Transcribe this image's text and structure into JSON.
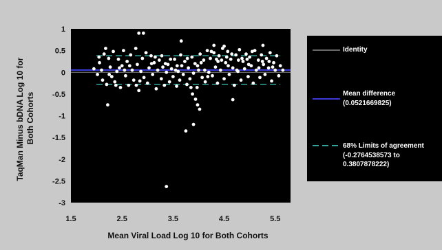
{
  "chart_data": {
    "type": "scatter",
    "title": "",
    "xlabel": "Mean Viral Load Log 10 for Both Cohorts",
    "ylabel_lines": [
      "TaqMan Minus bDNA Log 10 for",
      "Both Cohorts"
    ],
    "xlim": [
      1.5,
      5.8
    ],
    "ylim": [
      -3,
      1
    ],
    "x_ticks": [
      1.5,
      2.5,
      3.5,
      4.5,
      5.5
    ],
    "x_tick_labels": [
      "1.5",
      "2.5",
      "3.5",
      "4.5",
      "5.5"
    ],
    "y_ticks": [
      1,
      0.5,
      0,
      -0.5,
      -1,
      -1.5,
      -2,
      -2.5,
      -3
    ],
    "y_tick_labels": [
      "1",
      "0.5",
      "0",
      "-0.5",
      "-1",
      "-1.5",
      "-2",
      "-2.5",
      "-3"
    ],
    "grid": false,
    "legend_position": "right",
    "reference_lines": [
      {
        "name": "Identity",
        "y": 0,
        "color": "#8a8a8a",
        "style": "solid"
      },
      {
        "name": "Mean difference",
        "value_label": "(0.0521669825)",
        "y": 0.0521669825,
        "color": "#3a3ad8",
        "style": "solid"
      },
      {
        "name": "68% Limits of agreement",
        "value_label": "(-0.2764538573 to 0.3807878222)",
        "y": [
          -0.2764538573,
          0.3807878222
        ],
        "color": "#2fa89a",
        "style": "dashed"
      }
    ],
    "series": [
      {
        "point_color": "#ffffff",
        "points": [
          [
            2.83,
            0.9
          ],
          [
            2.92,
            0.9
          ],
          [
            3.66,
            0.72
          ],
          [
            2.22,
            -0.75
          ],
          [
            3.37,
            -2.63
          ],
          [
            3.75,
            -1.35
          ],
          [
            3.9,
            -1.2
          ],
          [
            3.94,
            -0.62
          ],
          [
            3.98,
            -0.75
          ],
          [
            4.02,
            -0.85
          ],
          [
            3.88,
            -0.5
          ],
          [
            4.67,
            -0.63
          ],
          [
            4.3,
            0.62
          ],
          [
            4.5,
            0.6
          ],
          [
            5.26,
            0.62
          ],
          [
            1.95,
            0.08
          ],
          [
            2.02,
            -0.05
          ],
          [
            2.06,
            0.22
          ],
          [
            2.1,
            0.05
          ],
          [
            2.12,
            -0.18
          ],
          [
            2.15,
            0.42
          ],
          [
            2.18,
            0.55
          ],
          [
            2.2,
            -0.28
          ],
          [
            2.24,
            0.32
          ],
          [
            2.27,
            0.12
          ],
          [
            2.3,
            -0.1
          ],
          [
            2.33,
            0.48
          ],
          [
            2.36,
            -0.22
          ],
          [
            2.4,
            0.02
          ],
          [
            2.43,
            0.3
          ],
          [
            2.47,
            -0.35
          ],
          [
            2.5,
            0.15
          ],
          [
            2.53,
            0.5
          ],
          [
            2.57,
            -0.08
          ],
          [
            2.6,
            0.25
          ],
          [
            2.63,
            -0.3
          ],
          [
            2.67,
            0.4
          ],
          [
            2.7,
            0.05
          ],
          [
            2.73,
            -0.18
          ],
          [
            2.77,
            0.55
          ],
          [
            2.8,
            0.18
          ],
          [
            2.83,
            -0.42
          ],
          [
            2.87,
            0.02
          ],
          [
            2.9,
            0.32
          ],
          [
            2.93,
            -0.12
          ],
          [
            2.97,
            0.45
          ],
          [
            3.0,
            -0.25
          ],
          [
            3.03,
            0.1
          ],
          [
            3.07,
            0.38
          ],
          [
            3.1,
            -0.05
          ],
          [
            3.13,
            0.22
          ],
          [
            3.17,
            -0.38
          ],
          [
            3.2,
            0.05
          ],
          [
            3.23,
            0.28
          ],
          [
            3.27,
            -0.15
          ],
          [
            3.3,
            0.12
          ],
          [
            3.33,
            -0.3
          ],
          [
            3.37,
            0.0
          ],
          [
            3.4,
            0.18
          ],
          [
            3.43,
            -0.22
          ],
          [
            3.47,
            0.08
          ],
          [
            3.5,
            -0.1
          ],
          [
            3.53,
            0.3
          ],
          [
            3.57,
            -0.32
          ],
          [
            3.6,
            0.02
          ],
          [
            3.63,
            -0.18
          ],
          [
            3.67,
            0.15
          ],
          [
            3.7,
            -0.05
          ],
          [
            3.73,
            0.25
          ],
          [
            3.77,
            -0.28
          ],
          [
            3.8,
            0.1
          ],
          [
            3.83,
            -0.15
          ],
          [
            3.87,
            0.35
          ],
          [
            3.9,
            -0.02
          ],
          [
            3.93,
            0.2
          ],
          [
            3.97,
            -0.35
          ],
          [
            4.0,
            0.05
          ],
          [
            4.03,
            0.42
          ],
          [
            4.07,
            -0.12
          ],
          [
            4.1,
            0.28
          ],
          [
            4.13,
            -0.22
          ],
          [
            4.17,
            0.5
          ],
          [
            4.2,
            0.0
          ],
          [
            4.23,
            0.32
          ],
          [
            4.27,
            -0.08
          ],
          [
            4.3,
            0.45
          ],
          [
            4.33,
            0.12
          ],
          [
            4.37,
            -0.25
          ],
          [
            4.4,
            0.38
          ],
          [
            4.43,
            0.05
          ],
          [
            4.47,
            0.55
          ],
          [
            4.5,
            -0.15
          ],
          [
            4.53,
            0.22
          ],
          [
            4.57,
            0.48
          ],
          [
            4.6,
            -0.05
          ],
          [
            4.63,
            0.3
          ],
          [
            4.67,
            0.1
          ],
          [
            4.7,
            -0.3
          ],
          [
            4.73,
            0.4
          ],
          [
            4.77,
            0.02
          ],
          [
            4.8,
            0.52
          ],
          [
            4.83,
            -0.18
          ],
          [
            4.87,
            0.25
          ],
          [
            4.9,
            0.08
          ],
          [
            4.93,
            0.42
          ],
          [
            4.97,
            -0.1
          ],
          [
            5.0,
            0.35
          ],
          [
            5.03,
            0.15
          ],
          [
            5.07,
            -0.25
          ],
          [
            5.1,
            0.5
          ],
          [
            5.13,
            0.05
          ],
          [
            5.17,
            0.28
          ],
          [
            5.2,
            -0.12
          ],
          [
            5.23,
            0.4
          ],
          [
            5.27,
            0.18
          ],
          [
            5.3,
            -0.05
          ],
          [
            5.33,
            0.32
          ],
          [
            5.37,
            0.1
          ],
          [
            5.4,
            0.45
          ],
          [
            5.43,
            -0.2
          ],
          [
            5.47,
            0.22
          ],
          [
            5.5,
            0.05
          ],
          [
            5.53,
            0.38
          ],
          [
            5.57,
            -0.08
          ],
          [
            5.6,
            0.15
          ],
          [
            5.65,
            0.05
          ],
          [
            2.05,
            0.35
          ],
          [
            2.25,
            -0.05
          ],
          [
            2.55,
            0.05
          ],
          [
            2.85,
            -0.2
          ],
          [
            3.15,
            0.35
          ],
          [
            3.45,
            0.3
          ],
          [
            3.65,
            0.4
          ],
          [
            3.85,
            -0.35
          ],
          [
            4.05,
            0.22
          ],
          [
            4.25,
            0.48
          ],
          [
            4.45,
            0.28
          ],
          [
            4.65,
            0.42
          ],
          [
            4.85,
            0.32
          ],
          [
            5.05,
            0.48
          ],
          [
            5.25,
            0.25
          ],
          [
            5.45,
            0.12
          ],
          [
            2.38,
            -0.3
          ],
          [
            2.78,
            -0.3
          ],
          [
            3.08,
            0.2
          ],
          [
            3.28,
            0.38
          ],
          [
            3.58,
            0.15
          ],
          [
            3.78,
            0.32
          ],
          [
            3.98,
            0.15
          ],
          [
            4.18,
            -0.1
          ],
          [
            4.38,
            0.25
          ],
          [
            4.58,
            0.15
          ],
          [
            4.78,
            0.28
          ],
          [
            4.98,
            0.18
          ],
          [
            5.18,
            0.1
          ],
          [
            5.38,
            0.25
          ],
          [
            4.12,
            0.05
          ],
          [
            4.35,
            0.3
          ],
          [
            4.55,
            0.35
          ],
          [
            4.75,
            0.05
          ],
          [
            4.95,
            0.3
          ],
          [
            3.55,
            0.05
          ],
          [
            3.35,
            0.2
          ],
          [
            2.65,
            0.15
          ],
          [
            2.45,
            0.1
          ]
        ]
      }
    ]
  }
}
